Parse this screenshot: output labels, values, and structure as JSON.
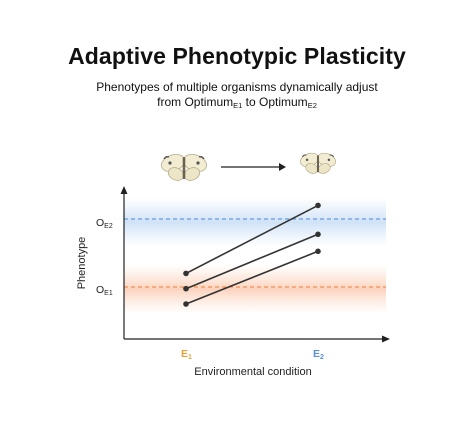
{
  "header": {
    "title": "Adaptive Phenotypic Plasticity",
    "subtitle_line1": "Phenotypes of multiple organisms dynamically adjust",
    "subtitle_from": "from Optimum",
    "subtitle_sub1": "E1",
    "subtitle_to": " to Optimum",
    "subtitle_sub2": "E2"
  },
  "axes": {
    "ylabel": "Phenotype",
    "xlabel": "Environmental condition",
    "ytick_top": {
      "base": "O",
      "sub": "E2"
    },
    "ytick_bottom": {
      "base": "O",
      "sub": "E1"
    },
    "xtick_left": {
      "base": "E",
      "sub": "1"
    },
    "xtick_right": {
      "base": "E",
      "sub": "2"
    }
  },
  "colors": {
    "optimum_e1": "#f07a3a",
    "optimum_e2": "#4a88d8",
    "e1_label": "#e8a23a",
    "e2_label": "#5a8fd6",
    "lines": "#333333"
  },
  "chart_data": {
    "type": "line",
    "x": [
      "E1",
      "E2"
    ],
    "ylim": [
      0,
      10
    ],
    "optima": [
      {
        "name": "OE1",
        "y": 4.0
      },
      {
        "name": "OE2",
        "y": 8.0
      }
    ],
    "series": [
      {
        "values": [
          4.8,
          8.8
        ]
      },
      {
        "values": [
          3.9,
          7.1
        ]
      },
      {
        "values": [
          3.0,
          6.1
        ]
      }
    ]
  },
  "icons": [
    "butterfly-icon",
    "arrow-right-icon",
    "butterfly-icon"
  ]
}
